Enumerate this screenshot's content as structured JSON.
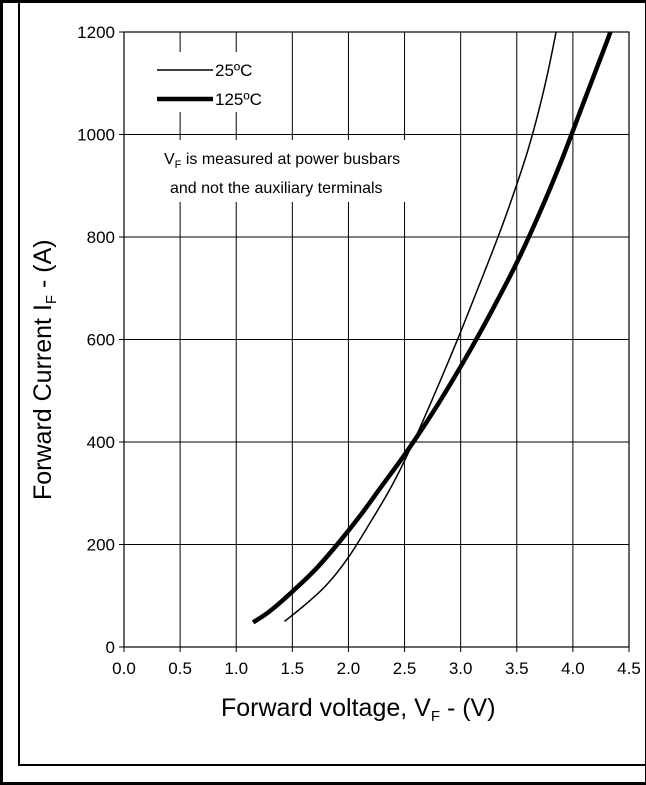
{
  "chart_data": {
    "type": "line",
    "title": "",
    "xlabel_main": "Forward voltage, V",
    "xlabel_sub": "F",
    "xlabel_tail": " - (V)",
    "ylabel_main": "Forward Current I",
    "ylabel_sub": "F",
    "ylabel_tail": " - (A)",
    "xlim": [
      0,
      4.5
    ],
    "ylim": [
      0,
      1200
    ],
    "x_ticks": [
      "0.0",
      "0.5",
      "1.0",
      "1.5",
      "2.0",
      "2.5",
      "3.0",
      "3.5",
      "4.0",
      "4.5"
    ],
    "y_ticks": [
      "0",
      "200",
      "400",
      "600",
      "800",
      "1000",
      "1200"
    ],
    "grid": true,
    "legend_position": "top-left",
    "series": [
      {
        "name": "25ºC",
        "line_width": "thin",
        "x": [
          1.43,
          1.6,
          1.8,
          2.0,
          2.2,
          2.4,
          2.6,
          2.8,
          3.0,
          3.2,
          3.4,
          3.6,
          3.75,
          3.85
        ],
        "y": [
          50,
          80,
          120,
          175,
          245,
          320,
          410,
          510,
          615,
          725,
          840,
          970,
          1095,
          1200
        ]
      },
      {
        "name": "125ºC",
        "line_width": "thick",
        "x": [
          1.15,
          1.3,
          1.5,
          1.7,
          1.9,
          2.1,
          2.3,
          2.5,
          2.7,
          2.9,
          3.1,
          3.3,
          3.5,
          3.7,
          3.9,
          4.1,
          4.3,
          4.4
        ],
        "y": [
          48,
          70,
          108,
          150,
          200,
          255,
          315,
          375,
          440,
          510,
          585,
          665,
          750,
          845,
          950,
          1065,
          1180,
          1240
        ]
      }
    ],
    "annotation_line1_main": "V",
    "annotation_line1_sub": "F",
    "annotation_line1_tail": " is measured at power busbars",
    "annotation_line2": "and not the auxiliary terminals"
  }
}
